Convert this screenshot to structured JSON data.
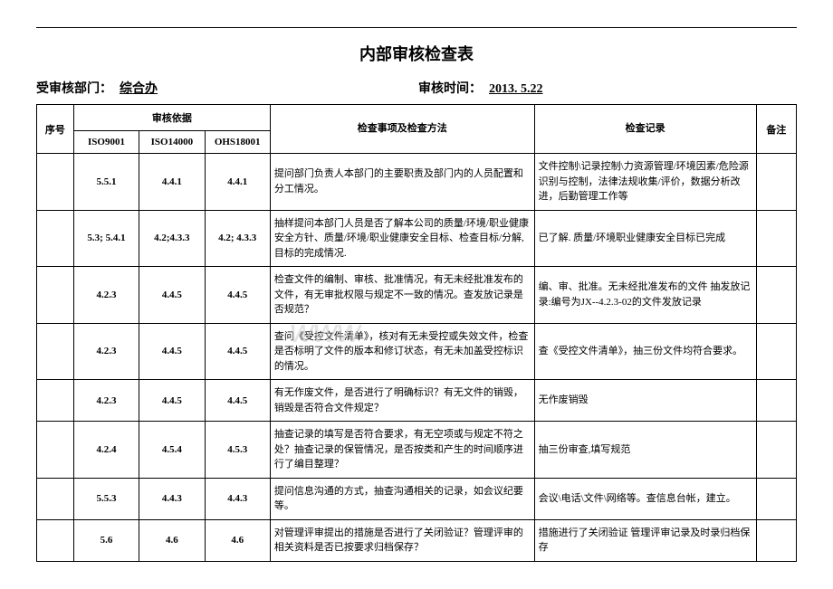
{
  "title": "内部审核检查表",
  "header": {
    "dept_label": "受审核部门：",
    "dept_value": "综合办",
    "time_label": "审核时间：",
    "time_value": "2013. 5.22"
  },
  "columns": {
    "seq": "序号",
    "basis": "审核依据",
    "iso9001": "ISO9001",
    "iso14000": "ISO14000",
    "ohs18001": "OHS18001",
    "method": "检查事项及检查方法",
    "record": "检查记录",
    "note": "备注"
  },
  "rows": [
    {
      "iso9001": "5.5.1",
      "iso14000": "4.4.1",
      "ohs18001": "4.4.1",
      "method": "提问部门负责人本部门的主要职责及部门内的人员配置和分工情况。",
      "record": "文件控制\\记录控制\\力资源管理/环境因素/危险源识别与控制，法律法规收集/评价，数据分析改进，后勤管理工作等"
    },
    {
      "iso9001": "5.3; 5.4.1",
      "iso14000": "4.2;4.3.3",
      "ohs18001": "4.2; 4.3.3",
      "method": "抽样提问本部门人员是否了解本公司的质量/环境/职业健康安全方针、质量/环境/职业健康安全目标、检查目标/分解,目标的完成情况.",
      "record": "已了解. 质量/环境职业健康安全目标已完成"
    },
    {
      "iso9001": "4.2.3",
      "iso14000": "4.4.5",
      "ohs18001": "4.4.5",
      "method": "检查文件的编制、审核、批准情况，有无未经批准发布的文件，有无审批权限与规定不一致的情况。查发放记录是否规范？",
      "record": "编、审、批准。无未经批准发布的文件 抽发放记录:编号为JX--4.2.3-02的文件发放记录"
    },
    {
      "iso9001": "4.2.3",
      "iso14000": "4.4.5",
      "ohs18001": "4.4.5",
      "method": "查问《受控文件清单》，核对有无未受控或失效文件，检查是否标明了文件的版本和修订状态，有无未加盖受控标识的情况。",
      "record": "查《受控文件清单》，抽三份文件均符合要求。"
    },
    {
      "iso9001": "4.2.3",
      "iso14000": "4.4.5",
      "ohs18001": "4.4.5",
      "method": "有无作废文件，是否进行了明确标识？有无文件的销毁，销毁是否符合文件规定？",
      "record": "无作废销毁"
    },
    {
      "iso9001": "4.2.4",
      "iso14000": "4.5.4",
      "ohs18001": "4.5.3",
      "method": "抽查记录的填写是否符合要求，有无空项或与规定不符之处？抽查记录的保管情况，是否按类和产生的时间顺序进行了编目整理？",
      "record": "抽三份审查,填写规范"
    },
    {
      "iso9001": "5.5.3",
      "iso14000": "4.4.3",
      "ohs18001": "4.4.3",
      "method": "提问信息沟通的方式，抽查沟通相关的记录，如会议纪要等。",
      "record": "会议\\电话\\文件\\网络等。查信息台帐，建立。"
    },
    {
      "iso9001": "5.6",
      "iso14000": "4.6",
      "ohs18001": "4.6",
      "method": "对管理评审提出的措施是否进行了关闭验证？管理评审的相关资料是否已按要求归档保存？",
      "record": "措施进行了关闭验证 管理评审记录及时录归档保存"
    }
  ],
  "watermark": "www"
}
